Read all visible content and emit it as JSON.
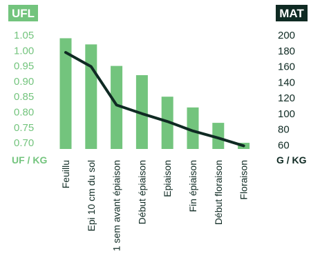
{
  "colors": {
    "ufl": "#73c47d",
    "bar": "#73c47d",
    "line": "#0f2a23",
    "mat_badge": "#0f2a23",
    "dark_text": "#0f2a23"
  },
  "chart_data": {
    "type": "bar",
    "categories": [
      "Feuillu",
      "Epi 10 cm du sol",
      "1 sem avant épiaison",
      "Début épiaison",
      "Epiaison",
      "Fin épiaison",
      "Début floraison",
      "Floraison"
    ],
    "left_axis": {
      "badge": "UFL",
      "unit": "UF / KG",
      "ticks": [
        "1.05",
        "1.00",
        "0.95",
        "0.90",
        "0.85",
        "0.80",
        "0.75",
        "0.70"
      ],
      "ylim": [
        0.68,
        1.05
      ]
    },
    "right_axis": {
      "badge": "MAT",
      "unit": "G / KG",
      "ticks": [
        "200",
        "180",
        "160",
        "140",
        "120",
        "100",
        "80",
        "60"
      ],
      "ylim": [
        55,
        200
      ]
    },
    "series": [
      {
        "type": "bar",
        "axis": "left",
        "values": [
          1.04,
          1.02,
          0.95,
          0.92,
          0.85,
          0.815,
          0.765,
          0.7
        ]
      },
      {
        "type": "line",
        "axis": "right",
        "values": [
          178,
          160,
          111,
          100,
          90,
          78,
          69,
          59
        ]
      }
    ]
  }
}
